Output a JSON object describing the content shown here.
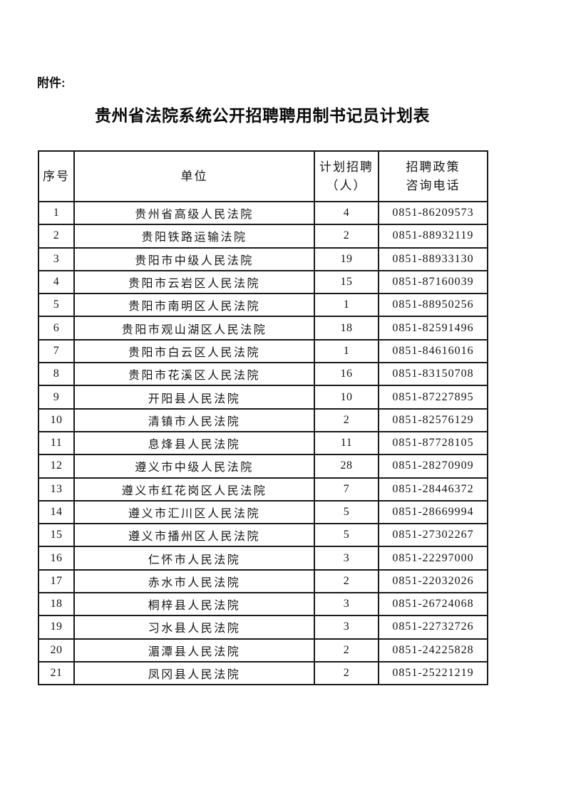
{
  "page": {
    "attachment_label": "附件:",
    "title": "贵州省法院系统公开招聘聘用制书记员计划表"
  },
  "table": {
    "headers": [
      "序号",
      "单位",
      "计划招聘\n（人）",
      "招聘政策\n咨询电话"
    ],
    "rows": [
      [
        "1",
        "贵州省高级人民法院",
        "4",
        "0851-86209573"
      ],
      [
        "2",
        "贵阳铁路运输法院",
        "2",
        "0851-88932119"
      ],
      [
        "3",
        "贵阳市中级人民法院",
        "19",
        "0851-88933130"
      ],
      [
        "4",
        "贵阳市云岩区人民法院",
        "15",
        "0851-87160039"
      ],
      [
        "5",
        "贵阳市南明区人民法院",
        "1",
        "0851-88950256"
      ],
      [
        "6",
        "贵阳市观山湖区人民法院",
        "18",
        "0851-82591496"
      ],
      [
        "7",
        "贵阳市白云区人民法院",
        "1",
        "0851-84616016"
      ],
      [
        "8",
        "贵阳市花溪区人民法院",
        "16",
        "0851-83150708"
      ],
      [
        "9",
        "开阳县人民法院",
        "10",
        "0851-87227895"
      ],
      [
        "10",
        "清镇市人民法院",
        "2",
        "0851-82576129"
      ],
      [
        "11",
        "息烽县人民法院",
        "11",
        "0851-87728105"
      ],
      [
        "12",
        "遵义市中级人民法院",
        "28",
        "0851-28270909"
      ],
      [
        "13",
        "遵义市红花岗区人民法院",
        "7",
        "0851-28446372"
      ],
      [
        "14",
        "遵义市汇川区人民法院",
        "5",
        "0851-28669994"
      ],
      [
        "15",
        "遵义市播州区人民法院",
        "5",
        "0851-27302267"
      ],
      [
        "16",
        "仁怀市人民法院",
        "3",
        "0851-22297000"
      ],
      [
        "17",
        "赤水市人民法院",
        "2",
        "0851-22032026"
      ],
      [
        "18",
        "桐梓县人民法院",
        "3",
        "0851-26724068"
      ],
      [
        "19",
        "习水县人民法院",
        "3",
        "0851-22732726"
      ],
      [
        "20",
        "湄潭县人民法院",
        "2",
        "0851-24225828"
      ],
      [
        "21",
        "凤冈县人民法院",
        "2",
        "0851-25221219"
      ]
    ]
  }
}
